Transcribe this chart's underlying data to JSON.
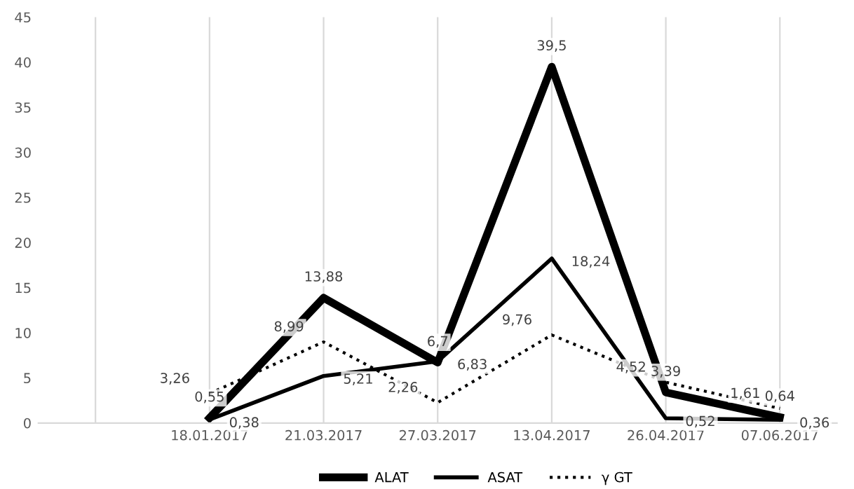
{
  "chart_data": {
    "type": "line",
    "categories": [
      null,
      "18.01.2017",
      "21.03.2017",
      "27.03.2017",
      "13.04.2017",
      "26.04.2017",
      "07.06.2017"
    ],
    "series": [
      {
        "name": "ALAT",
        "color": "#000000",
        "line_style": "solid",
        "values": [
          null,
          0.55,
          13.88,
          6.7,
          39.5,
          3.39,
          0.64
        ],
        "value_labels": [
          null,
          "0,55",
          "13,88",
          "6,7",
          "39,5",
          "3,39",
          "0,64"
        ]
      },
      {
        "name": "ASAT",
        "color": "#000000",
        "line_style": "solid",
        "values": [
          null,
          0.38,
          5.21,
          6.83,
          18.24,
          0.52,
          0.36
        ],
        "value_labels": [
          null,
          "0,38",
          "5,21",
          "6,83",
          "18,24",
          "0,52",
          "0,36"
        ]
      },
      {
        "name": "γ GT",
        "color": "#000000",
        "line_style": "dotted",
        "values": [
          null,
          3.26,
          8.99,
          2.26,
          9.76,
          4.52,
          1.61
        ],
        "value_labels": [
          null,
          "3,26",
          "8,99",
          "2,26",
          "9,76",
          "4,52",
          "1,61"
        ]
      }
    ],
    "ylim": [
      0,
      45
    ],
    "yticks": [
      0,
      5,
      10,
      15,
      20,
      25,
      30,
      35,
      40,
      45
    ],
    "grid": "x",
    "legend": "bottom",
    "marker": "none"
  }
}
